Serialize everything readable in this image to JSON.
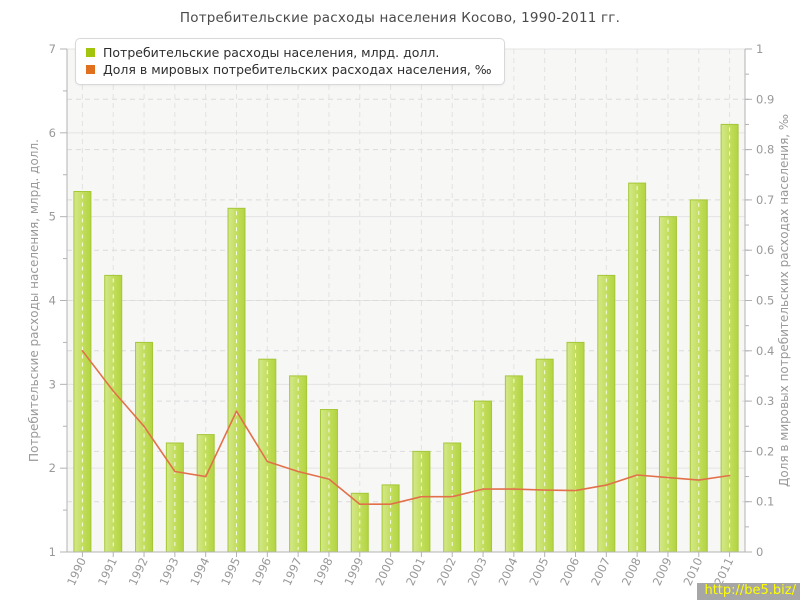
{
  "title": "Потребительские расходы населения Косово, 1990-2011 гг.",
  "watermark": {
    "text": "http://be5.biz/"
  },
  "colors": {
    "bar_fill": "#c3de5f",
    "bar_fill_light": "#d4e88a",
    "bar_fill_dark": "#b3d440",
    "bar_edge": "#a5c738",
    "line": "#e2714a",
    "legend_green": "#a3c40c",
    "legend_orange": "#e0701d",
    "axis_text": "#999999",
    "watermark_bg": "#a6a6a6",
    "watermark_text": "#ffff00"
  },
  "chart_data": {
    "type": "bar",
    "title": "Потребительские расходы населения Косово, 1990-2011 гг.",
    "categories": [
      "1990",
      "1991",
      "1992",
      "1993",
      "1994",
      "1995",
      "1996",
      "1997",
      "1998",
      "1999",
      "2000",
      "2001",
      "2002",
      "2003",
      "2004",
      "2005",
      "2006",
      "2007",
      "2008",
      "2009",
      "2010",
      "2011"
    ],
    "series": [
      {
        "name": "Потребительские расходы населения, млрд. долл.",
        "type": "bar",
        "axis": "left",
        "color": "#b5d548",
        "values": [
          5.3,
          4.3,
          3.5,
          2.3,
          2.4,
          5.1,
          3.3,
          3.1,
          2.7,
          1.7,
          1.8,
          2.2,
          2.3,
          2.8,
          3.1,
          3.3,
          3.5,
          4.3,
          5.4,
          5.0,
          5.2,
          6.1
        ]
      },
      {
        "name": "Доля в мировых потребительских расходах населения, ‰",
        "type": "line",
        "axis": "right",
        "color": "#e2714a",
        "values": [
          0.4,
          0.32,
          0.25,
          0.16,
          0.15,
          0.28,
          0.18,
          0.16,
          0.145,
          0.095,
          0.095,
          0.11,
          0.11,
          0.125,
          0.125,
          0.123,
          0.122,
          0.133,
          0.153,
          0.148,
          0.143,
          0.152
        ]
      }
    ],
    "left_axis": {
      "label": "Потребительские расходы населения, млрд. долл.",
      "min": 1,
      "max": 7,
      "tick_step": 1,
      "minor_step": 0.5
    },
    "right_axis": {
      "label": "Доля в мировых потребительских расходах населения, ‰",
      "min": 0,
      "max": 1,
      "tick_step": 0.1,
      "minor_step": 0.05
    },
    "grid": true,
    "legend_position": "top-left"
  }
}
